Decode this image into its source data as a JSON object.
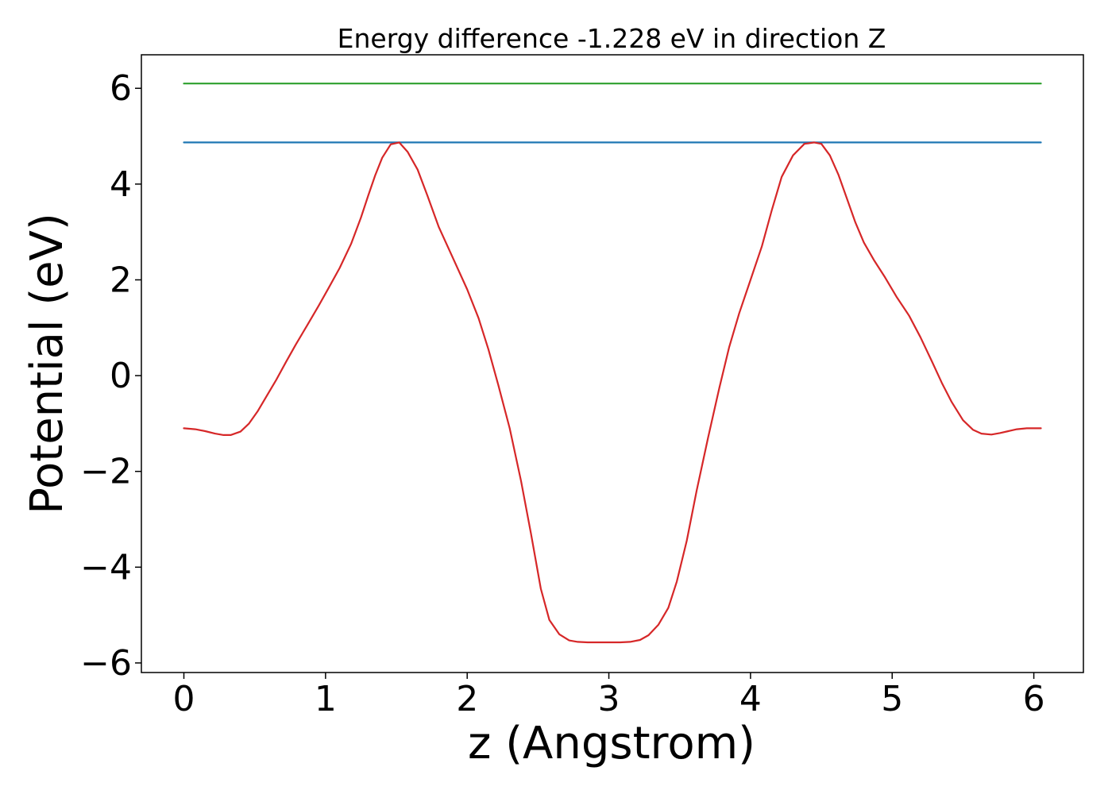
{
  "chart_data": {
    "type": "line",
    "title": "Energy difference -1.228 eV in direction Z",
    "xlabel": "z (Angstrom)",
    "ylabel": "Potential (eV)",
    "xlim": [
      -0.3,
      6.35
    ],
    "ylim": [
      -6.2,
      6.7
    ],
    "xticks": [
      0,
      1,
      2,
      3,
      4,
      5,
      6
    ],
    "xtick_labels": [
      "0",
      "1",
      "2",
      "3",
      "4",
      "5",
      "6"
    ],
    "yticks": [
      -6,
      -4,
      -2,
      0,
      2,
      4,
      6
    ],
    "ytick_labels": [
      "−6",
      "−4",
      "−2",
      "0",
      "2",
      "4",
      "6"
    ],
    "grid": false,
    "series": [
      {
        "color": "#2ca02c",
        "x": [
          0,
          6.05
        ],
        "y": [
          6.1,
          6.1
        ]
      },
      {
        "color": "#1f77b4",
        "x": [
          0,
          6.05
        ],
        "y": [
          4.87,
          4.87
        ]
      },
      {
        "color": "#d62728",
        "x": [
          0,
          0.08,
          0.15,
          0.22,
          0.28,
          0.33,
          0.4,
          0.46,
          0.52,
          0.58,
          0.65,
          0.72,
          0.79,
          0.87,
          0.95,
          1.02,
          1.1,
          1.18,
          1.25,
          1.3,
          1.35,
          1.4,
          1.46,
          1.52,
          1.58,
          1.65,
          1.72,
          1.8,
          1.9,
          2.0,
          2.08,
          2.15,
          2.22,
          2.3,
          2.38,
          2.45,
          2.52,
          2.58,
          2.65,
          2.72,
          2.78,
          2.85,
          2.92,
          3.0,
          3.08,
          3.15,
          3.22,
          3.28,
          3.35,
          3.42,
          3.48,
          3.55,
          3.62,
          3.7,
          3.78,
          3.85,
          3.92,
          4.0,
          4.08,
          4.15,
          4.22,
          4.3,
          4.38,
          4.45,
          4.5,
          4.56,
          4.62,
          4.68,
          4.74,
          4.8,
          4.87,
          4.95,
          5.03,
          5.12,
          5.2,
          5.28,
          5.35,
          5.42,
          5.5,
          5.57,
          5.63,
          5.7,
          5.76,
          5.82,
          5.88,
          5.95,
          6.05
        ],
        "y": [
          -1.1,
          -1.12,
          -1.16,
          -1.21,
          -1.24,
          -1.24,
          -1.17,
          -1.0,
          -0.75,
          -0.45,
          -0.1,
          0.28,
          0.65,
          1.05,
          1.45,
          1.82,
          2.25,
          2.75,
          3.3,
          3.75,
          4.18,
          4.55,
          4.83,
          4.87,
          4.67,
          4.3,
          3.75,
          3.1,
          2.45,
          1.8,
          1.2,
          0.55,
          -0.2,
          -1.1,
          -2.2,
          -3.3,
          -4.45,
          -5.1,
          -5.4,
          -5.53,
          -5.56,
          -5.57,
          -5.57,
          -5.57,
          -5.57,
          -5.56,
          -5.52,
          -5.42,
          -5.2,
          -4.85,
          -4.3,
          -3.45,
          -2.4,
          -1.3,
          -0.25,
          0.6,
          1.3,
          2.0,
          2.7,
          3.45,
          4.15,
          4.6,
          4.84,
          4.87,
          4.84,
          4.6,
          4.2,
          3.7,
          3.2,
          2.78,
          2.42,
          2.05,
          1.65,
          1.25,
          0.8,
          0.3,
          -0.15,
          -0.55,
          -0.93,
          -1.13,
          -1.21,
          -1.23,
          -1.2,
          -1.16,
          -1.12,
          -1.1,
          -1.1
        ]
      }
    ]
  }
}
